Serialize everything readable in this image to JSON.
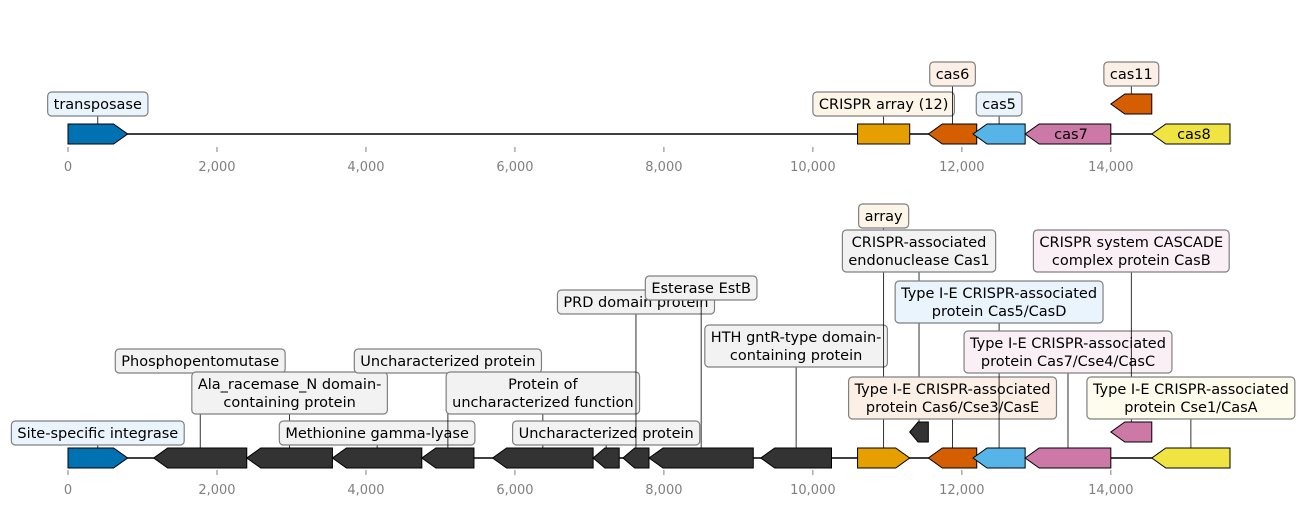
{
  "colors": {
    "blue": "#0072b2",
    "orange": "#e69f00",
    "vermillion": "#d55e00",
    "skyblue": "#56b4e9",
    "pink": "#cc79a7",
    "yellow": "#f0e442",
    "dark": "#333333",
    "box_blue": "#e9f4fc",
    "box_orange": "#fdf5e8",
    "box_vermillion": "#fbefe6",
    "box_pink": "#f9eff5",
    "box_yellow": "#fdfced",
    "box_grey": "#f2f2f2"
  },
  "axis": {
    "min": 0,
    "max": 15600,
    "ticks": [
      0,
      2000,
      4000,
      6000,
      8000,
      10000,
      12000,
      14000
    ],
    "tick_labels": [
      "0",
      "2,000",
      "4,000",
      "6,000",
      "8,000",
      "10,000",
      "12,000",
      "14,000"
    ]
  },
  "tracks": [
    {
      "name": "top",
      "features": [
        {
          "start": 0,
          "end": 800,
          "strand": 1,
          "color": "blue",
          "label": "transposase",
          "box": "box_blue",
          "inside": false,
          "level": 0
        },
        {
          "start": 10600,
          "end": 11300,
          "strand": 0,
          "color": "orange",
          "label": "CRISPR array (12)",
          "box": "box_orange",
          "inside": false,
          "level": 0
        },
        {
          "start": 11550,
          "end": 12200,
          "strand": -1,
          "color": "vermillion",
          "label": "cas6",
          "box": "box_vermillion",
          "inside": false,
          "level": 1
        },
        {
          "start": 12150,
          "end": 12850,
          "strand": -1,
          "color": "skyblue",
          "label": "cas5",
          "box": "box_blue",
          "inside": false,
          "level": 0
        },
        {
          "start": 12850,
          "end": 14000,
          "strand": -1,
          "color": "pink",
          "label": "cas7",
          "box": null,
          "inside": true,
          "level": 0
        },
        {
          "start": 14000,
          "end": 14550,
          "strand": -1,
          "color": "vermillion",
          "label": "cas11",
          "box": "box_vermillion",
          "inside": false,
          "level": 1,
          "row": 1
        },
        {
          "start": 14550,
          "end": 15600,
          "strand": -1,
          "color": "yellow",
          "label": "cas8",
          "box": null,
          "inside": true,
          "level": 0
        }
      ]
    },
    {
      "name": "bottom",
      "features": [
        {
          "start": 0,
          "end": 800,
          "strand": 1,
          "color": "blue",
          "label": "Site-specific integrase",
          "box": "box_blue",
          "level": 0
        },
        {
          "start": 1150,
          "end": 2400,
          "strand": -1,
          "color": "dark",
          "label": "Phosphopentomutase",
          "box": "box_grey",
          "level": 4
        },
        {
          "start": 2400,
          "end": 3550,
          "strand": -1,
          "color": "dark",
          "label": "Ala_racemase_N domain-\ncontaining protein",
          "box": "box_grey",
          "level": 2
        },
        {
          "start": 3550,
          "end": 4750,
          "strand": -1,
          "color": "dark",
          "label": "Methionine gamma-lyase",
          "box": "box_grey",
          "level": 0
        },
        {
          "start": 4750,
          "end": 5450,
          "strand": -1,
          "color": "dark",
          "label": "Uncharacterized protein",
          "box": "box_grey",
          "level": 4
        },
        {
          "start": 5700,
          "end": 7050,
          "strand": -1,
          "color": "dark",
          "label": "Protein of\nuncharacterized function",
          "box": "box_grey",
          "level": 2
        },
        {
          "start": 7050,
          "end": 7400,
          "strand": -1,
          "color": "dark",
          "label": "Uncharacterized protein",
          "box": "box_grey",
          "level": 0
        },
        {
          "start": 7450,
          "end": 7800,
          "strand": -1,
          "color": "dark",
          "label": "PRD domain protein",
          "box": "box_grey",
          "level": 6
        },
        {
          "start": 7800,
          "end": 9200,
          "strand": -1,
          "color": "dark",
          "label": "Esterase EstB",
          "box": "box_grey",
          "level": 7
        },
        {
          "start": 9300,
          "end": 10250,
          "strand": -1,
          "color": "dark",
          "label": "HTH gntR-type domain-\ncontaining protein",
          "box": "box_grey",
          "level": 5
        },
        {
          "start": 10600,
          "end": 11300,
          "strand": 1,
          "color": "orange",
          "label": "array",
          "box": "box_orange",
          "level": 9
        },
        {
          "start": 11300,
          "end": 11550,
          "strand": -1,
          "color": "dark",
          "label": "CRISPR-associated\nendonuclease Cas1",
          "box": "box_grey",
          "level": 8,
          "row": 1
        },
        {
          "start": 11550,
          "end": 12200,
          "strand": -1,
          "color": "vermillion",
          "label": "Type I-E CRISPR-associated\nprotein Cas6/Cse3/CasE",
          "box": "box_vermillion",
          "level": 1
        },
        {
          "start": 12150,
          "end": 12850,
          "strand": -1,
          "color": "skyblue",
          "label": "Type I-E CRISPR-associated\nprotein Cas5/CasD",
          "box": "box_blue",
          "level": 6
        },
        {
          "start": 12850,
          "end": 14000,
          "strand": -1,
          "color": "pink",
          "label": "Type I-E CRISPR-associated\nprotein Cas7/Cse4/CasC",
          "box": "box_pink",
          "level": 3
        },
        {
          "start": 14000,
          "end": 14550,
          "strand": -1,
          "color": "pink",
          "label": "CRISPR system CASCADE\ncomplex protein CasB",
          "box": "box_pink",
          "level": 8,
          "row": 1
        },
        {
          "start": 14550,
          "end": 15600,
          "strand": -1,
          "color": "yellow",
          "label": "Type I-E CRISPR-associated\nprotein Cse1/CasA",
          "box": "box_yellow",
          "level": 1
        }
      ]
    }
  ]
}
